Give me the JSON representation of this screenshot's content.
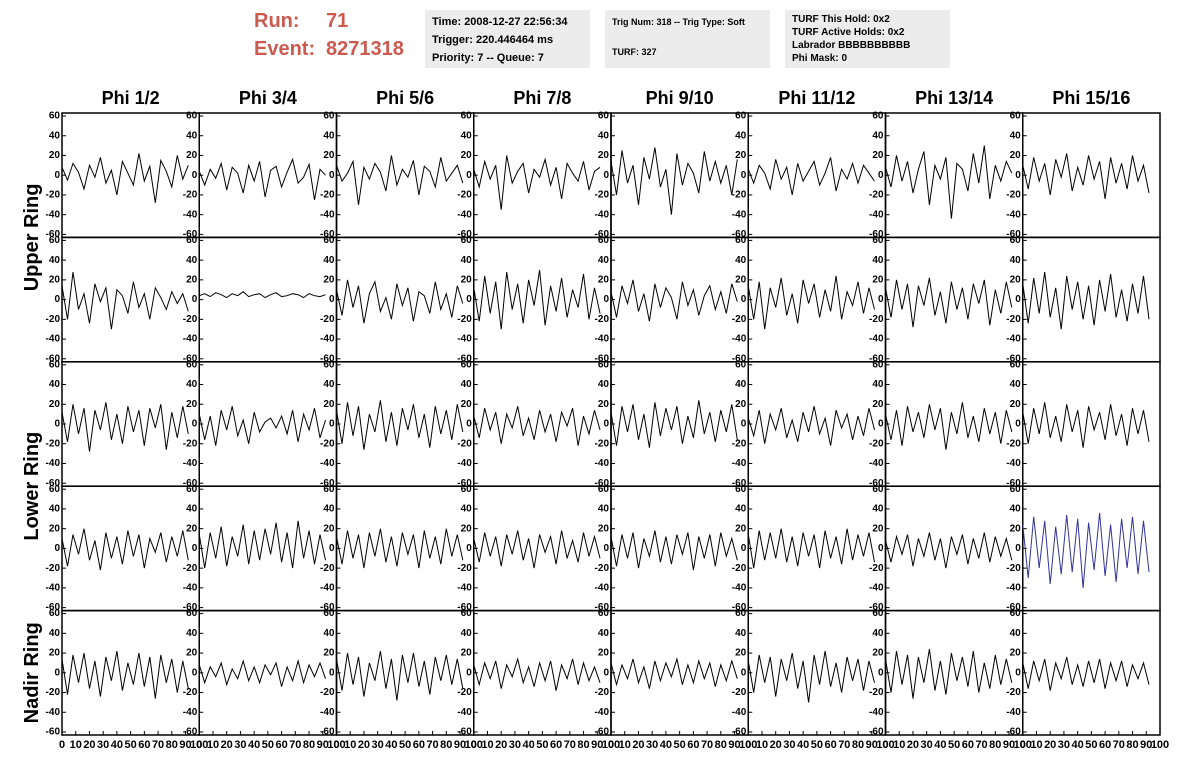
{
  "header": {
    "run_label": "Run:",
    "run": "71",
    "event_label": "Event:",
    "event": "8271318",
    "boxes": [
      [
        "Time: 2008-12-27 22:56:34",
        "Trigger: 220.446464 ms",
        "Priority: 7 -- Queue: 7"
      ],
      [
        "Trig Num: 318 -- Trig Type: Soft",
        "TURF: 327"
      ],
      [
        "TURF This Hold: 0x2",
        "TURF Active Holds: 0x2",
        "Labrador BBBBBBBBBB",
        "Phi Mask: 0"
      ]
    ]
  },
  "chart_data": {
    "type": "line",
    "color": "#000000",
    "columns": [
      "Phi 1/2",
      "Phi 3/4",
      "Phi 5/6",
      "Phi 7/8",
      "Phi 9/10",
      "Phi 11/12",
      "Phi 13/14",
      "Phi 15/16"
    ],
    "ring_labels": [
      "Upper Ring",
      "Lower Ring",
      "Nadir Ring"
    ],
    "xlim": [
      0,
      100
    ],
    "xticks": [
      0,
      10,
      20,
      30,
      40,
      50,
      60,
      70,
      80,
      90,
      100
    ],
    "ylim": [
      -60,
      60
    ],
    "yticks": [
      -60,
      -40,
      -20,
      0,
      20,
      40,
      60
    ],
    "x": [
      0,
      4,
      8,
      12,
      16,
      20,
      24,
      28,
      32,
      36,
      40,
      44,
      48,
      52,
      56,
      60,
      64,
      68,
      72,
      76,
      80,
      84,
      88,
      92
    ],
    "panels": [
      [
        {
          "values": [
            8,
            -5,
            12,
            3,
            -14,
            10,
            -2,
            18,
            -8,
            5,
            -20,
            14,
            2,
            -10,
            22,
            -6,
            9,
            -28,
            15,
            4,
            -12,
            20,
            -4,
            10
          ]
        },
        {
          "values": [
            4,
            -10,
            6,
            -3,
            12,
            -15,
            8,
            2,
            -18,
            10,
            -6,
            14,
            -22,
            5,
            9,
            -12,
            3,
            16,
            -8,
            -2,
            11,
            -25,
            6,
            0
          ]
        },
        {
          "values": [
            10,
            -6,
            2,
            14,
            -30,
            8,
            -4,
            12,
            3,
            -16,
            20,
            -10,
            6,
            -2,
            15,
            -20,
            9,
            4,
            -12,
            18,
            -6,
            2,
            10,
            -8
          ]
        },
        {
          "values": [
            6,
            -12,
            14,
            -4,
            10,
            -35,
            20,
            -8,
            4,
            12,
            -18,
            6,
            -2,
            16,
            -10,
            8,
            -24,
            12,
            2,
            -6,
            14,
            -15,
            4,
            8
          ]
        },
        {
          "values": [
            14,
            -20,
            25,
            -8,
            10,
            -30,
            18,
            -4,
            28,
            -12,
            6,
            -40,
            22,
            -10,
            12,
            2,
            -18,
            24,
            -6,
            14,
            -8,
            10,
            -20,
            16
          ]
        },
        {
          "values": [
            6,
            -8,
            10,
            2,
            -14,
            16,
            -4,
            8,
            -20,
            12,
            -6,
            4,
            14,
            -10,
            2,
            18,
            -16,
            6,
            -4,
            12,
            -8,
            10,
            2,
            -6
          ]
        },
        {
          "values": [
            8,
            -12,
            20,
            -6,
            14,
            -18,
            6,
            24,
            -30,
            10,
            -4,
            18,
            -44,
            12,
            6,
            -16,
            22,
            -8,
            30,
            -24,
            10,
            -6,
            14,
            2
          ]
        },
        {
          "values": [
            10,
            -14,
            18,
            -6,
            12,
            -20,
            16,
            -2,
            22,
            -16,
            8,
            -10,
            20,
            -4,
            14,
            -24,
            18,
            -8,
            12,
            -14,
            20,
            -6,
            10,
            -18
          ]
        }
      ],
      [
        {
          "values": [
            14,
            -20,
            28,
            -10,
            6,
            -24,
            16,
            -2,
            12,
            -30,
            10,
            4,
            -14,
            18,
            -8,
            6,
            -20,
            12,
            2,
            -10,
            8,
            -4,
            6,
            -12
          ]
        },
        {
          "values": [
            4,
            6,
            3,
            7,
            5,
            2,
            6,
            4,
            8,
            3,
            5,
            6,
            2,
            5,
            7,
            3,
            4,
            6,
            5,
            2,
            6,
            4,
            3,
            5
          ]
        },
        {
          "values": [
            10,
            -16,
            20,
            -8,
            14,
            -24,
            6,
            18,
            -12,
            2,
            -20,
            16,
            -6,
            12,
            -22,
            8,
            4,
            -14,
            18,
            -10,
            6,
            -18,
            14,
            -4
          ]
        },
        {
          "values": [
            12,
            -22,
            24,
            -14,
            18,
            -30,
            28,
            -10,
            16,
            -24,
            20,
            -6,
            30,
            -26,
            14,
            -12,
            22,
            -18,
            10,
            -8,
            26,
            -20,
            12,
            -14
          ]
        },
        {
          "values": [
            8,
            -18,
            14,
            -4,
            20,
            -12,
            6,
            -22,
            16,
            -8,
            12,
            2,
            -20,
            18,
            -6,
            10,
            -16,
            4,
            14,
            -10,
            8,
            -14,
            16,
            -2
          ]
        },
        {
          "values": [
            14,
            -20,
            18,
            -30,
            12,
            -8,
            22,
            -16,
            6,
            -24,
            20,
            -4,
            16,
            -18,
            10,
            -12,
            24,
            -20,
            8,
            -6,
            18,
            -14,
            12,
            -10
          ]
        },
        {
          "values": [
            12,
            -18,
            20,
            -10,
            16,
            -28,
            14,
            -6,
            22,
            -16,
            8,
            -24,
            18,
            -10,
            12,
            -20,
            16,
            -4,
            20,
            -26,
            10,
            -14,
            18,
            -8
          ]
        },
        {
          "values": [
            16,
            -24,
            22,
            -14,
            28,
            -18,
            12,
            -30,
            24,
            -10,
            18,
            -20,
            14,
            -26,
            20,
            -12,
            26,
            -18,
            10,
            -22,
            16,
            -14,
            24,
            -20
          ]
        }
      ],
      [
        {
          "values": [
            12,
            -18,
            20,
            -10,
            16,
            -28,
            14,
            -6,
            22,
            -16,
            10,
            -20,
            18,
            -8,
            14,
            -22,
            16,
            -4,
            20,
            -26,
            12,
            -14,
            18,
            -10
          ]
        },
        {
          "values": [
            10,
            -16,
            8,
            -22,
            14,
            -6,
            18,
            -12,
            4,
            -20,
            12,
            -8,
            2,
            6,
            -4,
            8,
            -10,
            14,
            -18,
            10,
            -6,
            16,
            -14,
            4
          ]
        },
        {
          "values": [
            14,
            -20,
            22,
            -12,
            18,
            -26,
            10,
            -8,
            24,
            -18,
            12,
            -22,
            16,
            -6,
            20,
            -14,
            10,
            -24,
            18,
            -10,
            14,
            -16,
            20,
            -8
          ]
        },
        {
          "values": [
            8,
            -14,
            16,
            -6,
            12,
            -20,
            10,
            -4,
            18,
            -12,
            6,
            -16,
            14,
            -8,
            10,
            -18,
            12,
            -2,
            16,
            -22,
            8,
            -10,
            14,
            -6
          ]
        },
        {
          "values": [
            12,
            -22,
            18,
            -8,
            20,
            -16,
            10,
            -24,
            22,
            -12,
            16,
            -6,
            18,
            -20,
            8,
            -14,
            24,
            -10,
            12,
            -18,
            14,
            -8,
            20,
            -16
          ]
        },
        {
          "values": [
            6,
            -12,
            14,
            -20,
            10,
            -6,
            16,
            -14,
            4,
            -18,
            12,
            -8,
            18,
            -10,
            6,
            -22,
            14,
            -4,
            10,
            -16,
            8,
            -12,
            16,
            -6
          ]
        },
        {
          "values": [
            10,
            -16,
            14,
            -22,
            18,
            -8,
            12,
            -14,
            20,
            -6,
            16,
            -26,
            12,
            -10,
            22,
            -14,
            8,
            -18,
            16,
            -10,
            12,
            -20,
            14,
            -8
          ]
        },
        {
          "values": [
            12,
            -20,
            16,
            -10,
            22,
            -14,
            8,
            -18,
            20,
            -8,
            14,
            -24,
            18,
            -6,
            12,
            -16,
            20,
            -12,
            10,
            -22,
            16,
            -10,
            14,
            -18
          ]
        }
      ],
      [
        {
          "values": [
            10,
            -18,
            14,
            -6,
            20,
            -12,
            8,
            -22,
            16,
            -10,
            12,
            -16,
            18,
            -8,
            14,
            -20,
            10,
            -4,
            16,
            -14,
            12,
            -8,
            18,
            -12
          ]
        },
        {
          "values": [
            14,
            -20,
            16,
            -10,
            22,
            -18,
            12,
            -8,
            24,
            -16,
            18,
            -12,
            20,
            -6,
            26,
            -14,
            16,
            -20,
            28,
            -10,
            18,
            -16,
            14,
            -12
          ]
        },
        {
          "values": [
            12,
            -16,
            18,
            -10,
            14,
            -20,
            16,
            -8,
            20,
            -14,
            12,
            -18,
            16,
            -6,
            14,
            -20,
            18,
            -10,
            12,
            -16,
            20,
            -8,
            14,
            -12
          ]
        },
        {
          "values": [
            10,
            -14,
            16,
            -8,
            12,
            -18,
            14,
            -6,
            18,
            -12,
            10,
            -20,
            14,
            -4,
            12,
            -16,
            18,
            -10,
            8,
            -14,
            16,
            -8,
            12,
            -10
          ]
        },
        {
          "values": [
            12,
            -18,
            14,
            -10,
            16,
            -20,
            10,
            -8,
            18,
            -14,
            12,
            -16,
            14,
            -6,
            16,
            -22,
            12,
            -10,
            14,
            -18,
            16,
            -8,
            10,
            -12
          ]
        },
        {
          "values": [
            14,
            -20,
            18,
            -12,
            16,
            -10,
            20,
            -14,
            12,
            -18,
            16,
            -8,
            14,
            -20,
            18,
            -10,
            12,
            -16,
            20,
            -12,
            14,
            -8,
            16,
            -14
          ]
        },
        {
          "values": [
            8,
            -14,
            12,
            -6,
            14,
            -18,
            10,
            -8,
            16,
            -12,
            10,
            -20,
            12,
            -6,
            14,
            -16,
            10,
            -10,
            16,
            -14,
            12,
            -8,
            10,
            -12
          ]
        },
        {
          "color": "#33339a",
          "values": [
            24,
            -30,
            32,
            -20,
            28,
            -36,
            22,
            -26,
            34,
            -24,
            30,
            -40,
            26,
            -22,
            36,
            -28,
            24,
            -34,
            30,
            -20,
            32,
            -26,
            28,
            -24
          ]
        }
      ],
      [
        {
          "values": [
            14,
            -22,
            18,
            -10,
            20,
            -16,
            12,
            -24,
            16,
            -8,
            22,
            -18,
            10,
            -12,
            20,
            -14,
            16,
            -26,
            18,
            -10,
            14,
            -20,
            12,
            -16
          ]
        },
        {
          "values": [
            8,
            -10,
            6,
            -4,
            10,
            -12,
            4,
            -6,
            12,
            -8,
            6,
            -10,
            8,
            -2,
            10,
            -14,
            6,
            -8,
            12,
            -10,
            8,
            -4,
            10,
            -6
          ]
        },
        {
          "values": [
            14,
            -18,
            20,
            -12,
            16,
            -24,
            10,
            -8,
            22,
            -16,
            14,
            -28,
            18,
            -10,
            20,
            -14,
            12,
            -22,
            16,
            -8,
            18,
            -12,
            14,
            -16
          ]
        },
        {
          "values": [
            8,
            -12,
            10,
            -6,
            12,
            -16,
            8,
            -4,
            14,
            -10,
            6,
            -14,
            10,
            -8,
            12,
            -18,
            8,
            -6,
            14,
            -12,
            10,
            -8,
            6,
            -10
          ]
        },
        {
          "values": [
            10,
            -12,
            8,
            -6,
            14,
            -10,
            6,
            -16,
            12,
            -8,
            10,
            -4,
            14,
            -12,
            8,
            -10,
            12,
            -6,
            10,
            -14,
            8,
            -8,
            12,
            -6
          ]
        },
        {
          "values": [
            12,
            -20,
            18,
            -10,
            16,
            -24,
            14,
            -8,
            20,
            -16,
            12,
            -30,
            18,
            -12,
            22,
            -14,
            10,
            -20,
            16,
            -8,
            14,
            -18,
            12,
            -10
          ]
        },
        {
          "values": [
            14,
            -20,
            22,
            -12,
            18,
            -26,
            16,
            -10,
            24,
            -18,
            12,
            -22,
            20,
            -8,
            16,
            -14,
            22,
            -20,
            10,
            -16,
            18,
            -12,
            14,
            -10
          ]
        },
        {
          "values": [
            10,
            -16,
            12,
            -8,
            14,
            -18,
            10,
            -6,
            16,
            -12,
            8,
            -14,
            12,
            -10,
            14,
            -16,
            10,
            -8,
            12,
            -14,
            8,
            -6,
            10,
            -12
          ]
        }
      ]
    ]
  }
}
